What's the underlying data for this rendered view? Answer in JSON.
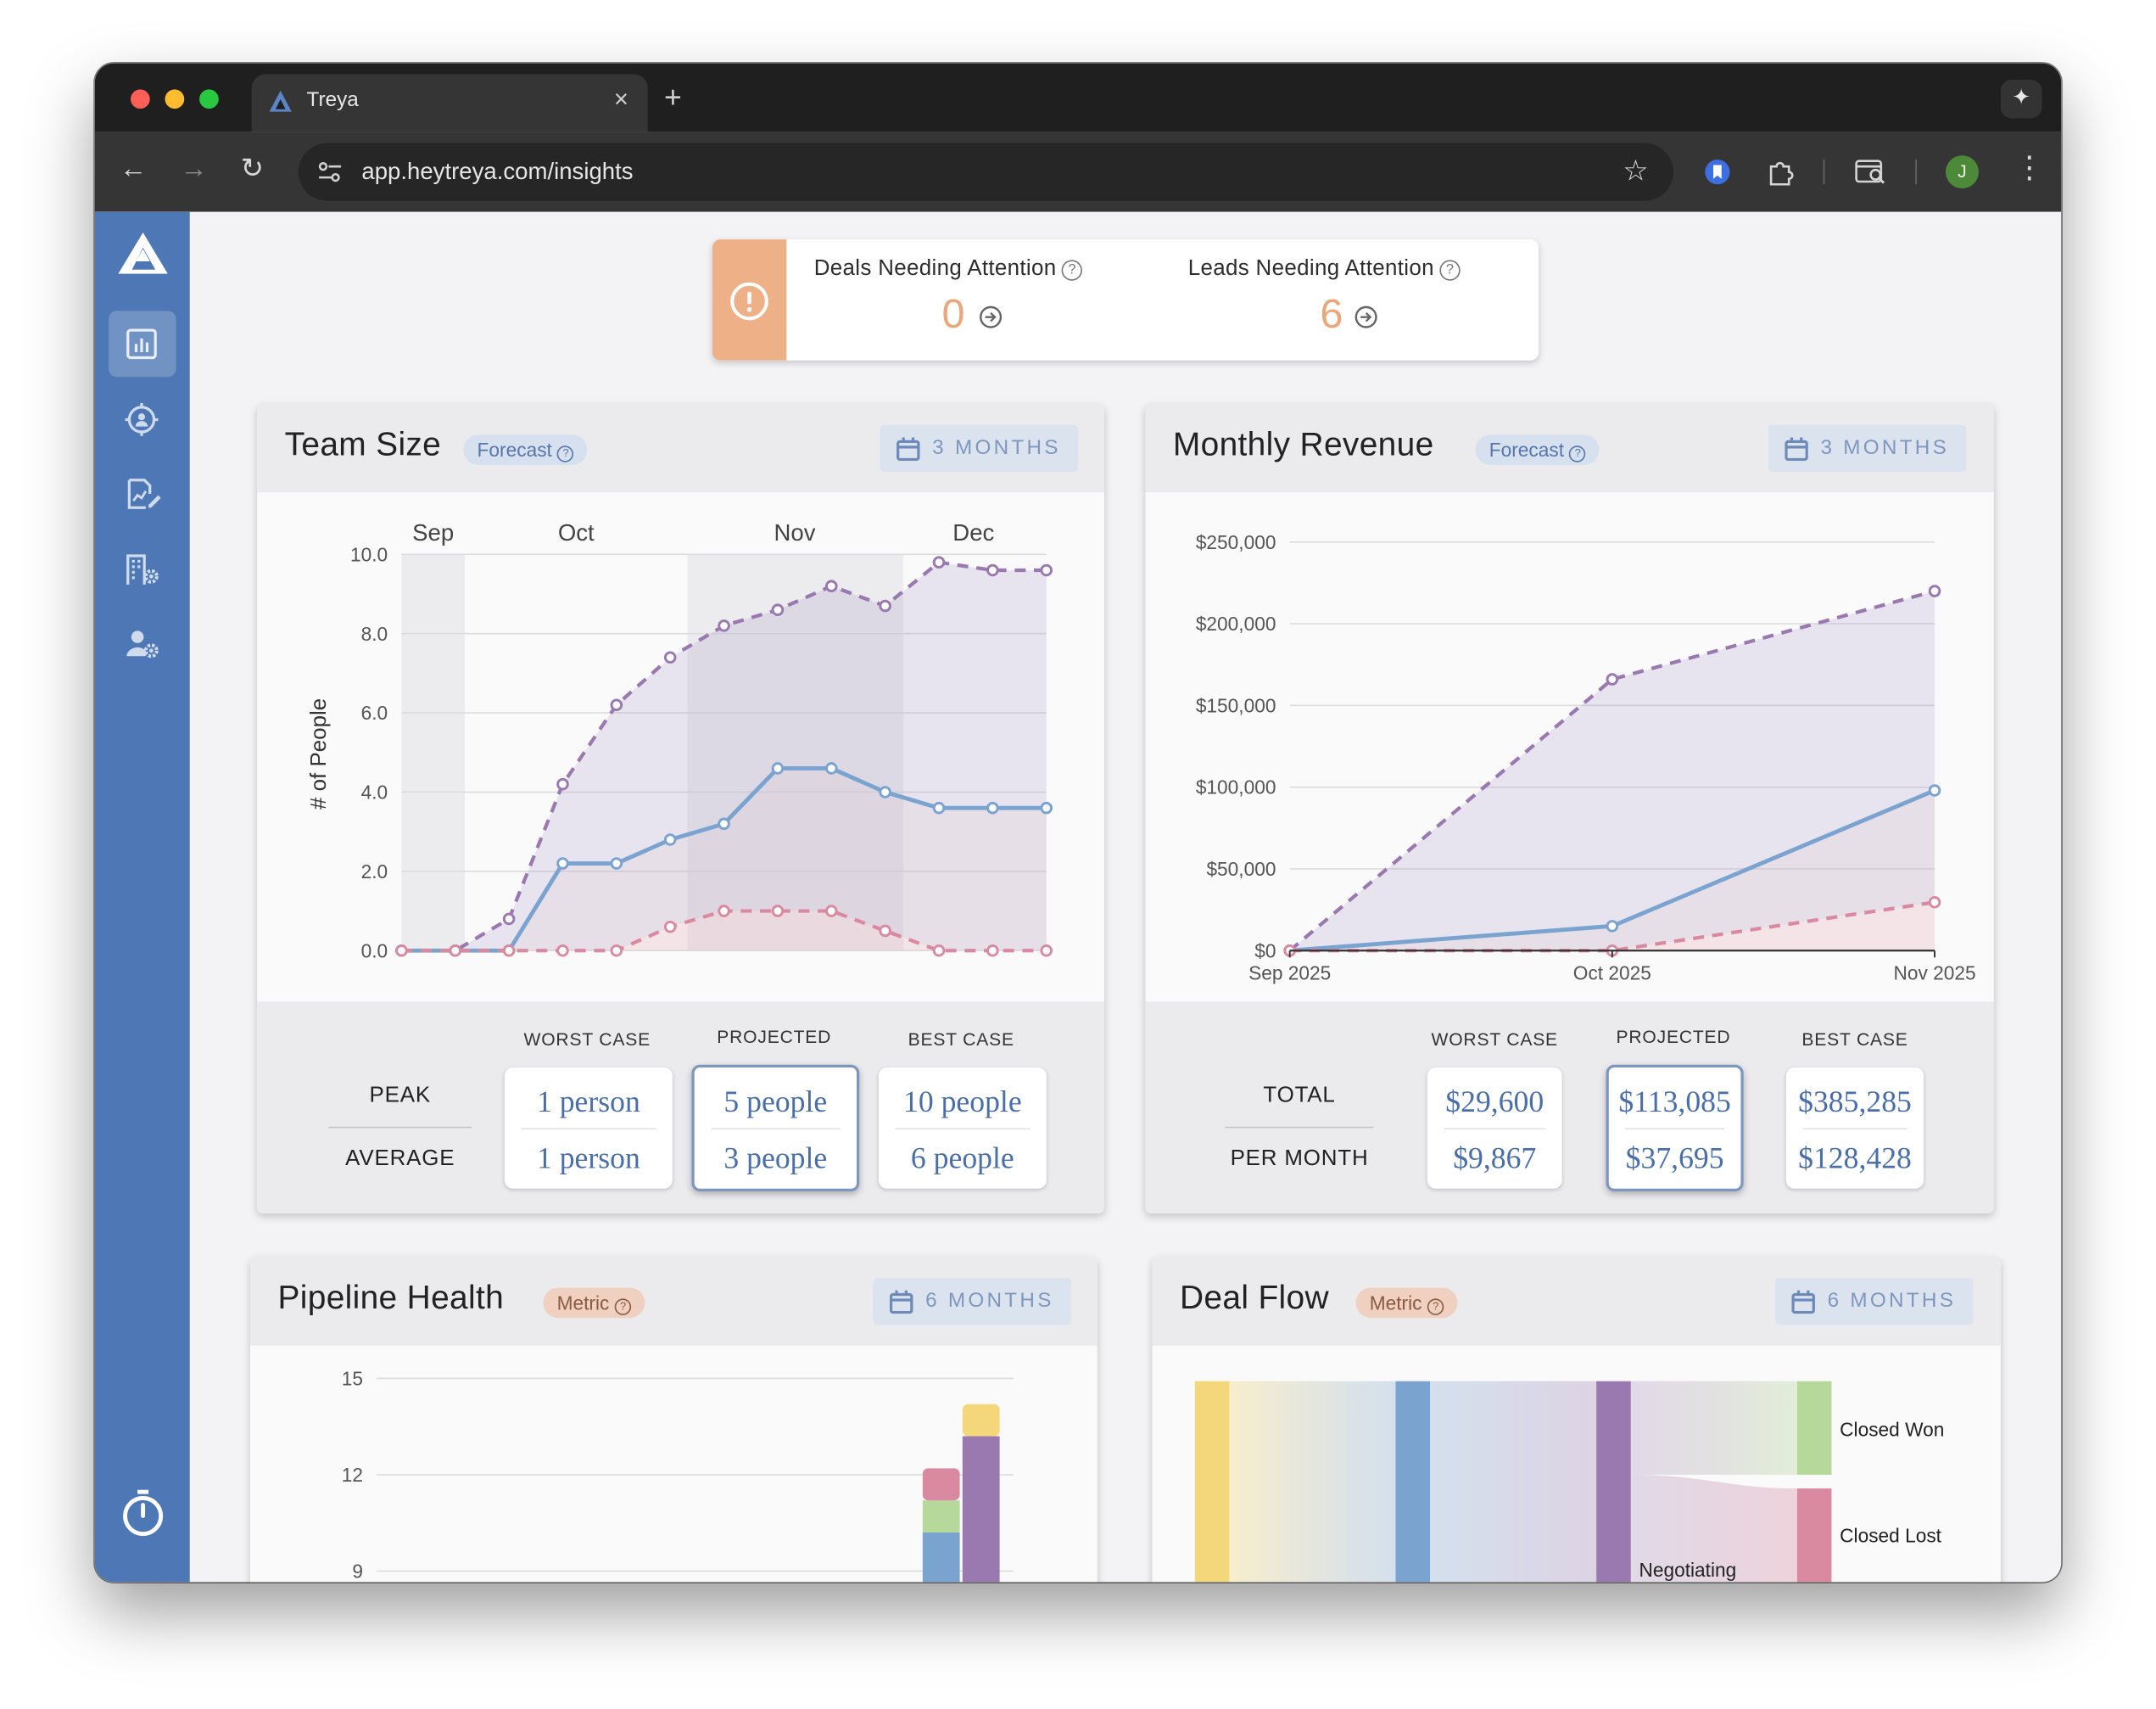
{
  "browser": {
    "tab_title": "Treya",
    "tab_close": "×",
    "new_tab": "+",
    "url": "app.heytreya.com/insights",
    "profile_initial": "J"
  },
  "colors": {
    "sidebar": "#4e78b5",
    "alert_accent": "#eeb087",
    "worst_case": "#d98aa0",
    "projected": "#7aa3cf",
    "best_case": "#9a78b0"
  },
  "sidebar": {
    "items": [
      {
        "icon": "bar-chart-icon",
        "active": true
      },
      {
        "icon": "target-user-icon"
      },
      {
        "icon": "edit-chart-icon"
      },
      {
        "icon": "building-gear-icon"
      },
      {
        "icon": "user-gear-icon"
      }
    ],
    "footer_icon": "stopwatch-icon"
  },
  "alert": {
    "deals_label": "Deals Needing Attention",
    "deals_count": "0",
    "leads_label": "Leads Needing Attention",
    "leads_count": "6"
  },
  "team_size": {
    "title": "Team Size",
    "badge": "Forecast",
    "range": "3 MONTHS",
    "col_worst": "WORST CASE",
    "col_projected": "PROJECTED",
    "col_best": "BEST CASE",
    "row_peak": "PEAK",
    "row_average": "AVERAGE",
    "peak": {
      "worst": "1 person",
      "projected": "5 people",
      "best": "10 people"
    },
    "average": {
      "worst": "1 person",
      "projected": "3 people",
      "best": "6 people"
    }
  },
  "monthly_revenue": {
    "title": "Monthly Revenue",
    "badge": "Forecast",
    "range": "3 MONTHS",
    "col_worst": "WORST CASE",
    "col_projected": "PROJECTED",
    "col_best": "BEST CASE",
    "row_total": "TOTAL",
    "row_per_month": "PER MONTH",
    "total": {
      "worst": "$29,600",
      "projected": "$113,085",
      "best": "$385,285"
    },
    "per_month": {
      "worst": "$9,867",
      "projected": "$37,695",
      "best": "$128,428"
    }
  },
  "pipeline_health": {
    "title": "Pipeline Health",
    "badge": "Metric",
    "range": "6 MONTHS"
  },
  "deal_flow": {
    "title": "Deal Flow",
    "badge": "Metric",
    "range": "6 MONTHS",
    "labels": {
      "closed_won": "Closed Won",
      "closed_lost": "Closed Lost",
      "negotiating": "Negotiating"
    }
  },
  "chart_data": [
    {
      "name_ref": "team_size",
      "type": "line",
      "ylabel": "# of People",
      "xlabel": "",
      "month_labels": [
        "Sep",
        "Oct",
        "Nov",
        "Dec"
      ],
      "ylim": [
        0,
        10
      ],
      "y_ticks": [
        "0.0",
        "2.0",
        "4.0",
        "6.0",
        "8.0",
        "10.0"
      ],
      "grid": true,
      "series": [
        {
          "role": "best",
          "style": "dashed",
          "values": [
            0,
            0,
            0.8,
            4.2,
            6.2,
            7.4,
            8.2,
            8.6,
            9.2,
            8.7,
            9.8,
            9.6,
            9.6
          ]
        },
        {
          "role": "projected",
          "style": "solid",
          "values": [
            0,
            0,
            0,
            2.2,
            2.2,
            2.8,
            3.2,
            4.6,
            4.6,
            4.0,
            3.6,
            3.6,
            3.6
          ]
        },
        {
          "role": "worst",
          "style": "dashed",
          "values": [
            0,
            0,
            0,
            0,
            0,
            0.6,
            1.0,
            1.0,
            1.0,
            0.5,
            0,
            0,
            0
          ]
        }
      ]
    },
    {
      "name_ref": "monthly_revenue",
      "type": "line",
      "categories": [
        "Sep 2025",
        "Oct 2025",
        "Nov 2025"
      ],
      "ylim": [
        0,
        250000
      ],
      "y_ticks": [
        "$0",
        "$50,000",
        "$100,000",
        "$150,000",
        "$200,000",
        "$250,000"
      ],
      "grid": true,
      "series": [
        {
          "role": "best",
          "style": "dashed",
          "values": [
            0,
            166000,
            220000
          ]
        },
        {
          "role": "projected",
          "style": "solid",
          "values": [
            0,
            15000,
            98000
          ]
        },
        {
          "role": "worst",
          "style": "dashed",
          "values": [
            0,
            0,
            29600
          ]
        }
      ]
    },
    {
      "name_ref": "pipeline_health",
      "type": "bar",
      "stacked": true,
      "y_ticks": [
        "9",
        "12",
        "15"
      ],
      "ylim": [
        9,
        15
      ],
      "visible_bars": [
        {
          "segments": [
            {
              "color": "#7aa3cf",
              "value": 10.2
            },
            {
              "color": "#b6d89a",
              "value": 1.0
            },
            {
              "color": "#d98aa0",
              "value": 1.0
            }
          ]
        },
        {
          "segments": [
            {
              "color": "#9a78b0",
              "value": 13.2
            },
            {
              "color": "#f3d77a",
              "value": 1.0
            }
          ]
        }
      ]
    }
  ]
}
